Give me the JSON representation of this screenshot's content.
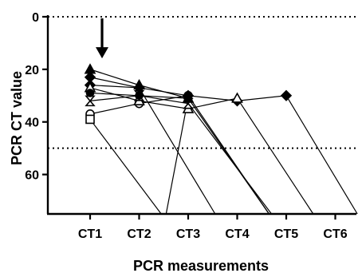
{
  "chart_data": {
    "type": "line",
    "title": "",
    "xlabel": "PCR measurements",
    "ylabel": "PCR CT value",
    "categories": [
      "CT1",
      "CT2",
      "CT3",
      "CT4",
      "CT5",
      "CT6"
    ],
    "yticks": [
      0,
      20,
      40,
      60
    ],
    "ylim": [
      0,
      75
    ],
    "y_inverted": true,
    "reference_lines": [
      0,
      50
    ],
    "annotations": [
      {
        "type": "arrow",
        "direction": "down",
        "x_category": "CT1",
        "y_top": 0,
        "y_bottom": 14
      }
    ],
    "grid": false,
    "legend": "none",
    "series": [
      {
        "marker": "triangle-filled",
        "values": [
          20,
          26,
          31,
          null,
          null,
          null
        ],
        "drop_to": 1.55
      },
      {
        "marker": "circle-open",
        "values": [
          37,
          33,
          30,
          null,
          null,
          null
        ],
        "drop_to": 3.65
      },
      {
        "marker": "square-open",
        "values": [
          39,
          null,
          null,
          null,
          null,
          null
        ],
        "drop_to": 1.45
      },
      {
        "marker": "diamond-filled",
        "values": [
          26,
          27,
          30,
          32,
          30,
          null
        ],
        "drop_to": 5.45
      },
      {
        "marker": "triangle-open",
        "values": [
          27,
          32,
          35,
          31,
          null,
          null
        ],
        "drop_to": 4.55
      },
      {
        "marker": "hourglass",
        "values": [
          32,
          30,
          33,
          null,
          null,
          null
        ],
        "drop_to": 3.7
      },
      {
        "marker": "diamond-filled",
        "values": [
          23,
          27,
          null,
          null,
          null,
          null
        ],
        "drop_to": 2.55
      },
      {
        "marker": "circle-filled",
        "values": [
          29,
          30,
          31,
          null,
          null,
          null
        ],
        "drop_to": 3.65
      }
    ]
  }
}
